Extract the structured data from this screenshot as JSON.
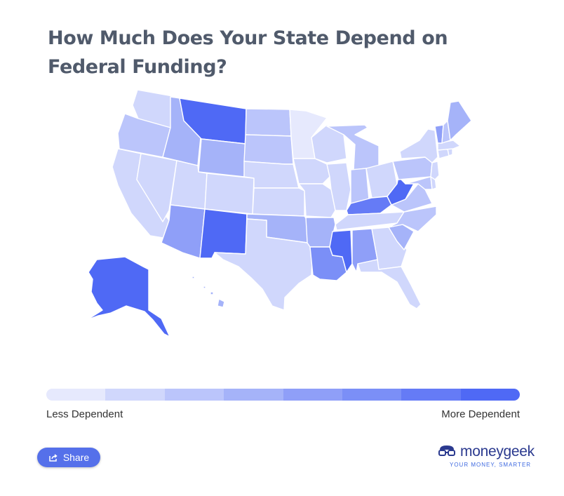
{
  "title": "How Much Does Your State Depend on Federal Funding?",
  "legend": {
    "left_label": "Less Dependent",
    "right_label": "More Dependent",
    "colors": [
      "#e6e9fd",
      "#d0d7fc",
      "#bbc5fb",
      "#a5b3f9",
      "#8f9ff8",
      "#7b8ff7",
      "#657bf6",
      "#4f69f5"
    ]
  },
  "share": {
    "label": "Share"
  },
  "brand": {
    "name": "moneygeek",
    "tagline": "YOUR MONEY, SMARTER"
  },
  "states": [
    {
      "name": "WA",
      "level": 1
    },
    {
      "name": "OR",
      "level": 2
    },
    {
      "name": "CA",
      "level": 1
    },
    {
      "name": "NV",
      "level": 1
    },
    {
      "name": "ID",
      "level": 3
    },
    {
      "name": "MT",
      "level": 7
    },
    {
      "name": "WY",
      "level": 3
    },
    {
      "name": "UT",
      "level": 1
    },
    {
      "name": "AZ",
      "level": 4
    },
    {
      "name": "CO",
      "level": 1
    },
    {
      "name": "NM",
      "level": 7
    },
    {
      "name": "ND",
      "level": 2
    },
    {
      "name": "SD",
      "level": 2
    },
    {
      "name": "NE",
      "level": 1
    },
    {
      "name": "KS",
      "level": 1
    },
    {
      "name": "OK",
      "level": 3
    },
    {
      "name": "TX",
      "level": 1
    },
    {
      "name": "MN",
      "level": 0
    },
    {
      "name": "IA",
      "level": 1
    },
    {
      "name": "MO",
      "level": 1
    },
    {
      "name": "AR",
      "level": 3
    },
    {
      "name": "LA",
      "level": 5
    },
    {
      "name": "WI",
      "level": 1
    },
    {
      "name": "IL",
      "level": 1
    },
    {
      "name": "MI",
      "level": 2
    },
    {
      "name": "IN",
      "level": 2
    },
    {
      "name": "OH",
      "level": 1
    },
    {
      "name": "KY",
      "level": 6
    },
    {
      "name": "TN",
      "level": 1
    },
    {
      "name": "MS",
      "level": 7
    },
    {
      "name": "AL",
      "level": 4
    },
    {
      "name": "GA",
      "level": 1
    },
    {
      "name": "FL",
      "level": 1
    },
    {
      "name": "SC",
      "level": 3
    },
    {
      "name": "NC",
      "level": 2
    },
    {
      "name": "VA",
      "level": 2
    },
    {
      "name": "WV",
      "level": 7
    },
    {
      "name": "PA",
      "level": 2
    },
    {
      "name": "NY",
      "level": 1
    },
    {
      "name": "MD",
      "level": 2
    },
    {
      "name": "DE",
      "level": 1
    },
    {
      "name": "NJ",
      "level": 1
    },
    {
      "name": "CT",
      "level": 1
    },
    {
      "name": "RI",
      "level": 1
    },
    {
      "name": "MA",
      "level": 1
    },
    {
      "name": "VT",
      "level": 4
    },
    {
      "name": "NH",
      "level": 2
    },
    {
      "name": "ME",
      "level": 3
    },
    {
      "name": "AK",
      "level": 7
    },
    {
      "name": "HI",
      "level": 3
    }
  ]
}
